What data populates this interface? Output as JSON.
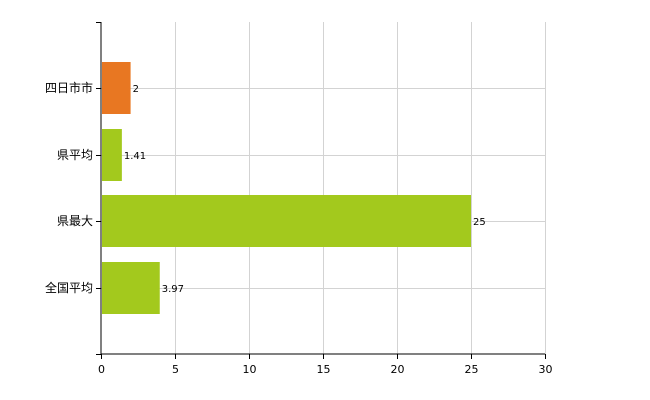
{
  "chart_data": {
    "type": "bar",
    "orientation": "horizontal",
    "categories": [
      "四日市市",
      "県平均",
      "県最大",
      "全国平均"
    ],
    "values": [
      2,
      1.41,
      25,
      3.97
    ],
    "data_labels": [
      "2",
      "1.41",
      "25",
      "3.97"
    ],
    "bar_colors": [
      "#e87722",
      "#a3c91d",
      "#a3c91d",
      "#a3c91d"
    ],
    "xlim": [
      0,
      30
    ],
    "x_ticks": [
      0,
      5,
      10,
      15,
      20,
      25,
      30
    ],
    "grid": true,
    "legend": "none",
    "title": "",
    "xlabel": "",
    "ylabel": ""
  }
}
